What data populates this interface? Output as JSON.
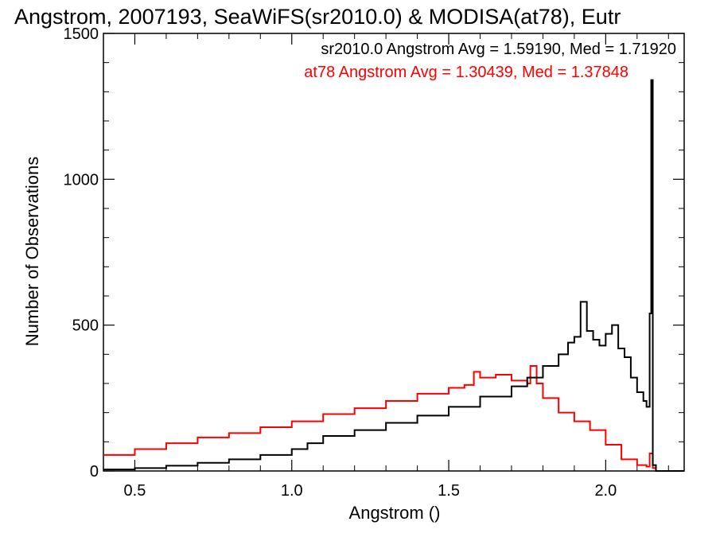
{
  "chart_data": {
    "type": "line",
    "title": "Angstrom, 2007193, SeaWiFS(sr2010.0) & MODISA(at78), Eutr",
    "xlabel": "Angstrom ()",
    "ylabel": "Number of Observations",
    "xlim": [
      0.4,
      2.25
    ],
    "ylim": [
      0,
      1500
    ],
    "x_ticks": [
      0.5,
      1.0,
      1.5,
      2.0
    ],
    "x_tick_labels": [
      "0.5",
      "1.0",
      "1.5",
      "2.0"
    ],
    "y_ticks": [
      0,
      500,
      1000,
      1500
    ],
    "y_tick_labels": [
      "0",
      "500",
      "1000",
      "1500"
    ],
    "step": "histogram",
    "series": [
      {
        "name": "sr2010.0",
        "color": "#000000",
        "annotation": "sr2010.0 Angstrom Avg = 1.59190, Med = 1.71920",
        "points": [
          [
            0.4,
            5
          ],
          [
            0.5,
            10
          ],
          [
            0.6,
            18
          ],
          [
            0.7,
            28
          ],
          [
            0.8,
            40
          ],
          [
            0.9,
            55
          ],
          [
            1.0,
            75
          ],
          [
            1.05,
            95
          ],
          [
            1.1,
            120
          ],
          [
            1.2,
            140
          ],
          [
            1.3,
            165
          ],
          [
            1.4,
            190
          ],
          [
            1.5,
            220
          ],
          [
            1.6,
            255
          ],
          [
            1.7,
            290
          ],
          [
            1.75,
            320
          ],
          [
            1.8,
            360
          ],
          [
            1.85,
            400
          ],
          [
            1.88,
            440
          ],
          [
            1.9,
            460
          ],
          [
            1.92,
            580
          ],
          [
            1.94,
            480
          ],
          [
            1.96,
            450
          ],
          [
            1.98,
            430
          ],
          [
            2.0,
            470
          ],
          [
            2.02,
            500
          ],
          [
            2.04,
            420
          ],
          [
            2.06,
            390
          ],
          [
            2.08,
            320
          ],
          [
            2.1,
            270
          ],
          [
            2.12,
            240
          ],
          [
            2.13,
            220
          ],
          [
            2.14,
            540
          ],
          [
            2.145,
            1340
          ],
          [
            2.15,
            20
          ],
          [
            2.16,
            0
          ],
          [
            2.25,
            0
          ]
        ]
      },
      {
        "name": "at78",
        "color": "#ff0000",
        "annotation": "at78 Angstrom Avg = 1.30439, Med = 1.37848",
        "points": [
          [
            0.4,
            55
          ],
          [
            0.5,
            75
          ],
          [
            0.6,
            95
          ],
          [
            0.7,
            115
          ],
          [
            0.8,
            130
          ],
          [
            0.9,
            150
          ],
          [
            1.0,
            170
          ],
          [
            1.1,
            195
          ],
          [
            1.2,
            215
          ],
          [
            1.3,
            240
          ],
          [
            1.4,
            265
          ],
          [
            1.5,
            285
          ],
          [
            1.55,
            295
          ],
          [
            1.58,
            340
          ],
          [
            1.6,
            320
          ],
          [
            1.65,
            330
          ],
          [
            1.7,
            310
          ],
          [
            1.75,
            300
          ],
          [
            1.76,
            360
          ],
          [
            1.78,
            300
          ],
          [
            1.8,
            250
          ],
          [
            1.85,
            200
          ],
          [
            1.9,
            170
          ],
          [
            1.95,
            140
          ],
          [
            2.0,
            90
          ],
          [
            2.05,
            40
          ],
          [
            2.1,
            20
          ],
          [
            2.13,
            15
          ],
          [
            2.14,
            60
          ],
          [
            2.15,
            10
          ],
          [
            2.16,
            0
          ],
          [
            2.25,
            0
          ]
        ]
      }
    ]
  }
}
